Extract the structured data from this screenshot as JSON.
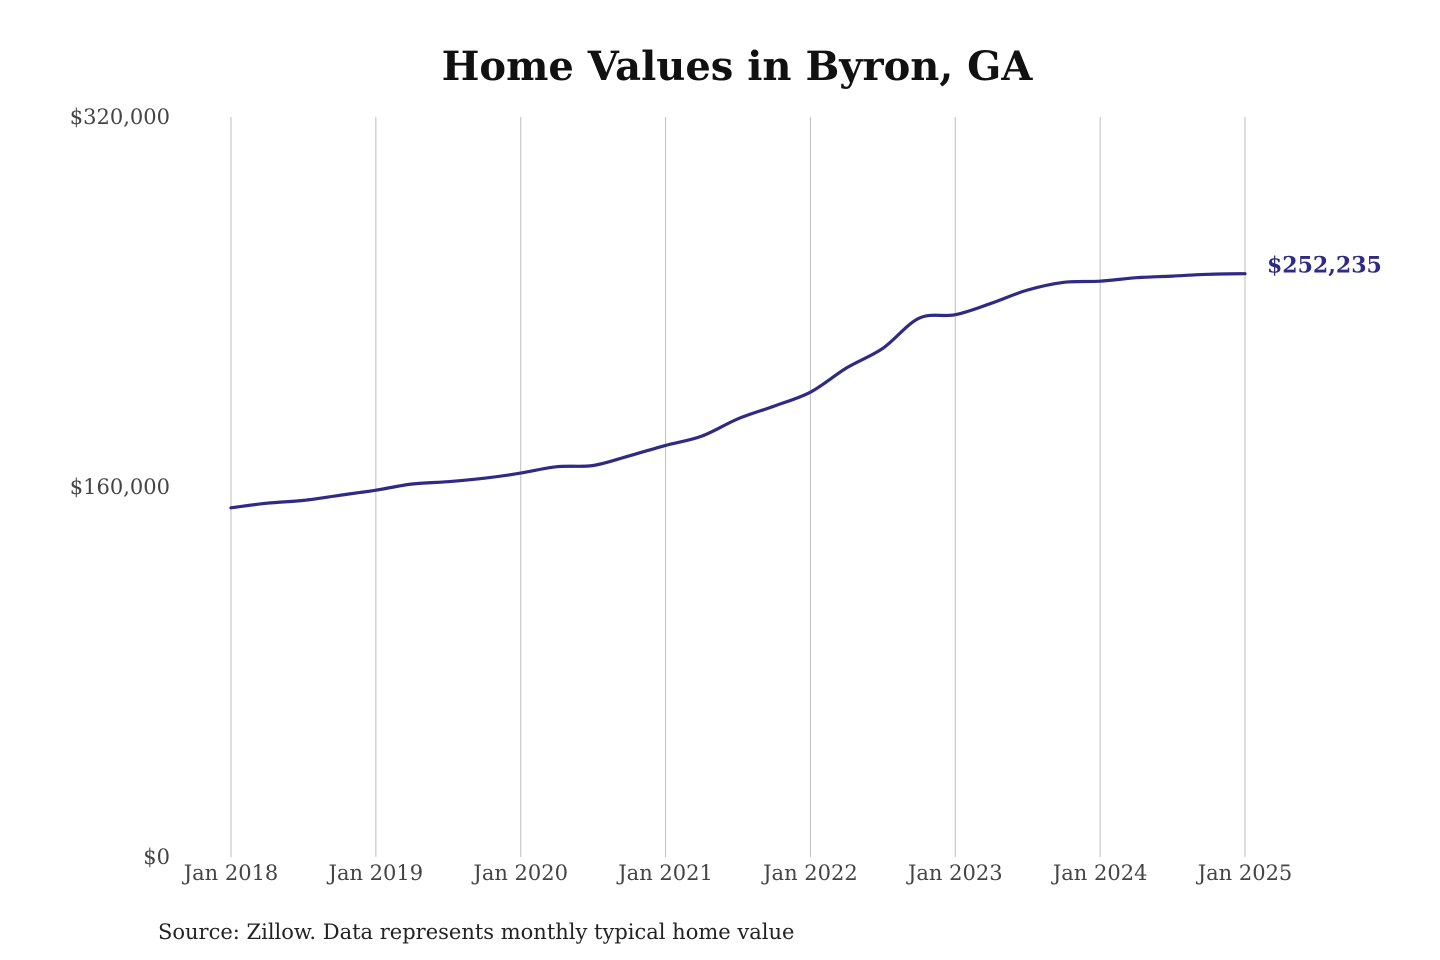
{
  "chart_data": {
    "type": "line",
    "title": "Home Values in Byron, GA",
    "xlabel": "",
    "ylabel": "",
    "x_start": "Jan 2018",
    "x_ticks": [
      "Jan 2018",
      "Jan 2019",
      "Jan 2020",
      "Jan 2021",
      "Jan 2022",
      "Jan 2023",
      "Jan 2024",
      "Jan 2025"
    ],
    "y_ticks": [
      "$0",
      "$160,000",
      "$320,000"
    ],
    "ylim": [
      0,
      320000
    ],
    "grid": {
      "vertical": true,
      "horizontal": false
    },
    "series": [
      {
        "color": "#2e2a85",
        "x": [
          "Jan 2018",
          "Apr 2018",
          "Jul 2018",
          "Oct 2018",
          "Jan 2019",
          "Apr 2019",
          "Jul 2019",
          "Oct 2019",
          "Jan 2020",
          "Apr 2020",
          "Jul 2020",
          "Oct 2020",
          "Jan 2021",
          "Apr 2021",
          "Jul 2021",
          "Oct 2021",
          "Jan 2022",
          "Apr 2022",
          "Jul 2022",
          "Oct 2022",
          "Jan 2023",
          "Apr 2023",
          "Jul 2023",
          "Oct 2023",
          "Jan 2024",
          "Apr 2024",
          "Jul 2024",
          "Oct 2024",
          "Jan 2025"
        ],
        "values": [
          151000,
          153000,
          154200,
          156400,
          158600,
          161300,
          162300,
          163800,
          166000,
          168800,
          169300,
          173500,
          178000,
          182000,
          189500,
          195000,
          201000,
          211500,
          220000,
          233000,
          234500,
          239500,
          245200,
          248500,
          249000,
          250500,
          251200,
          252000,
          252235
        ]
      }
    ],
    "end_label": "$252,235"
  },
  "source_note": "Source: Zillow. Data represents monthly typical home value"
}
